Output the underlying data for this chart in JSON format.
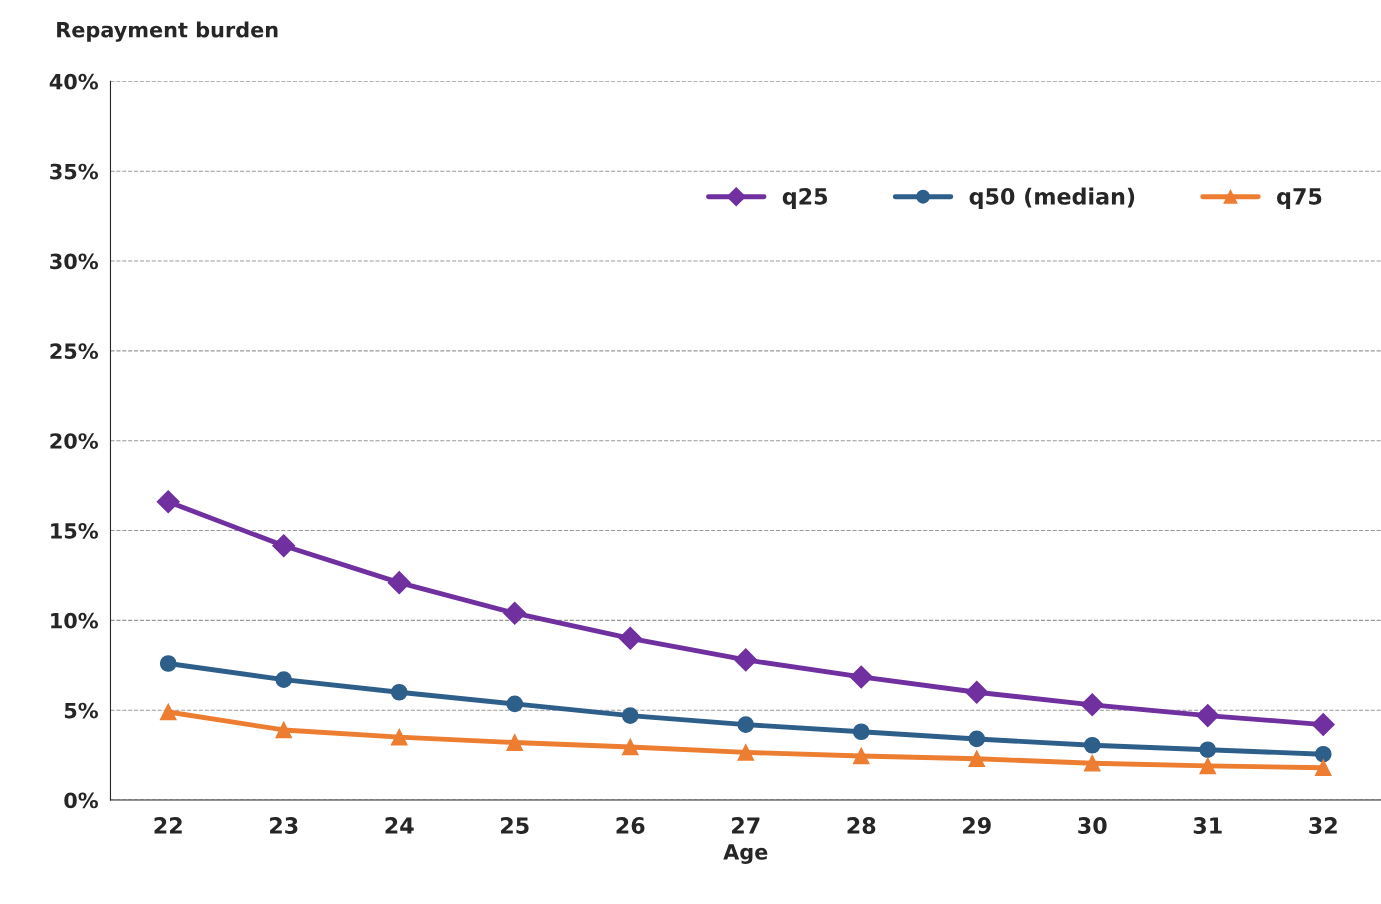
{
  "chart_data": {
    "type": "line",
    "ylabel": "Repayment burden",
    "xlabel": "Age",
    "categories": [
      "22",
      "23",
      "24",
      "25",
      "26",
      "27",
      "28",
      "29",
      "30",
      "31",
      "32"
    ],
    "series": [
      {
        "name": "q25",
        "color": "#7030a0",
        "marker": "diamond",
        "values": [
          16.6,
          14.15,
          12.1,
          10.4,
          9.0,
          7.8,
          6.85,
          6.0,
          5.3,
          4.7,
          4.2
        ]
      },
      {
        "name": "q50 (median)",
        "color": "#2e5f8a",
        "marker": "circle",
        "values": [
          7.6,
          6.7,
          6.0,
          5.35,
          4.7,
          4.2,
          3.8,
          3.4,
          3.05,
          2.8,
          2.55
        ]
      },
      {
        "name": "q75",
        "color": "#ed7d31",
        "marker": "triangle",
        "values": [
          4.9,
          3.9,
          3.5,
          3.2,
          2.95,
          2.65,
          2.45,
          2.3,
          2.05,
          1.9,
          1.8
        ]
      }
    ],
    "ylim": [
      0,
      40
    ],
    "yticks": [
      {
        "value": 0,
        "label": "0%"
      },
      {
        "value": 5,
        "label": "5%"
      },
      {
        "value": 10,
        "label": "10%"
      },
      {
        "value": 15,
        "label": "15%"
      },
      {
        "value": 20,
        "label": "20%"
      },
      {
        "value": 25,
        "label": "25%"
      },
      {
        "value": 30,
        "label": "30%"
      },
      {
        "value": 35,
        "label": "35%"
      },
      {
        "value": 40,
        "label": "40%"
      }
    ],
    "grid": "y",
    "legend": "top right",
    "line_style": "solid"
  }
}
